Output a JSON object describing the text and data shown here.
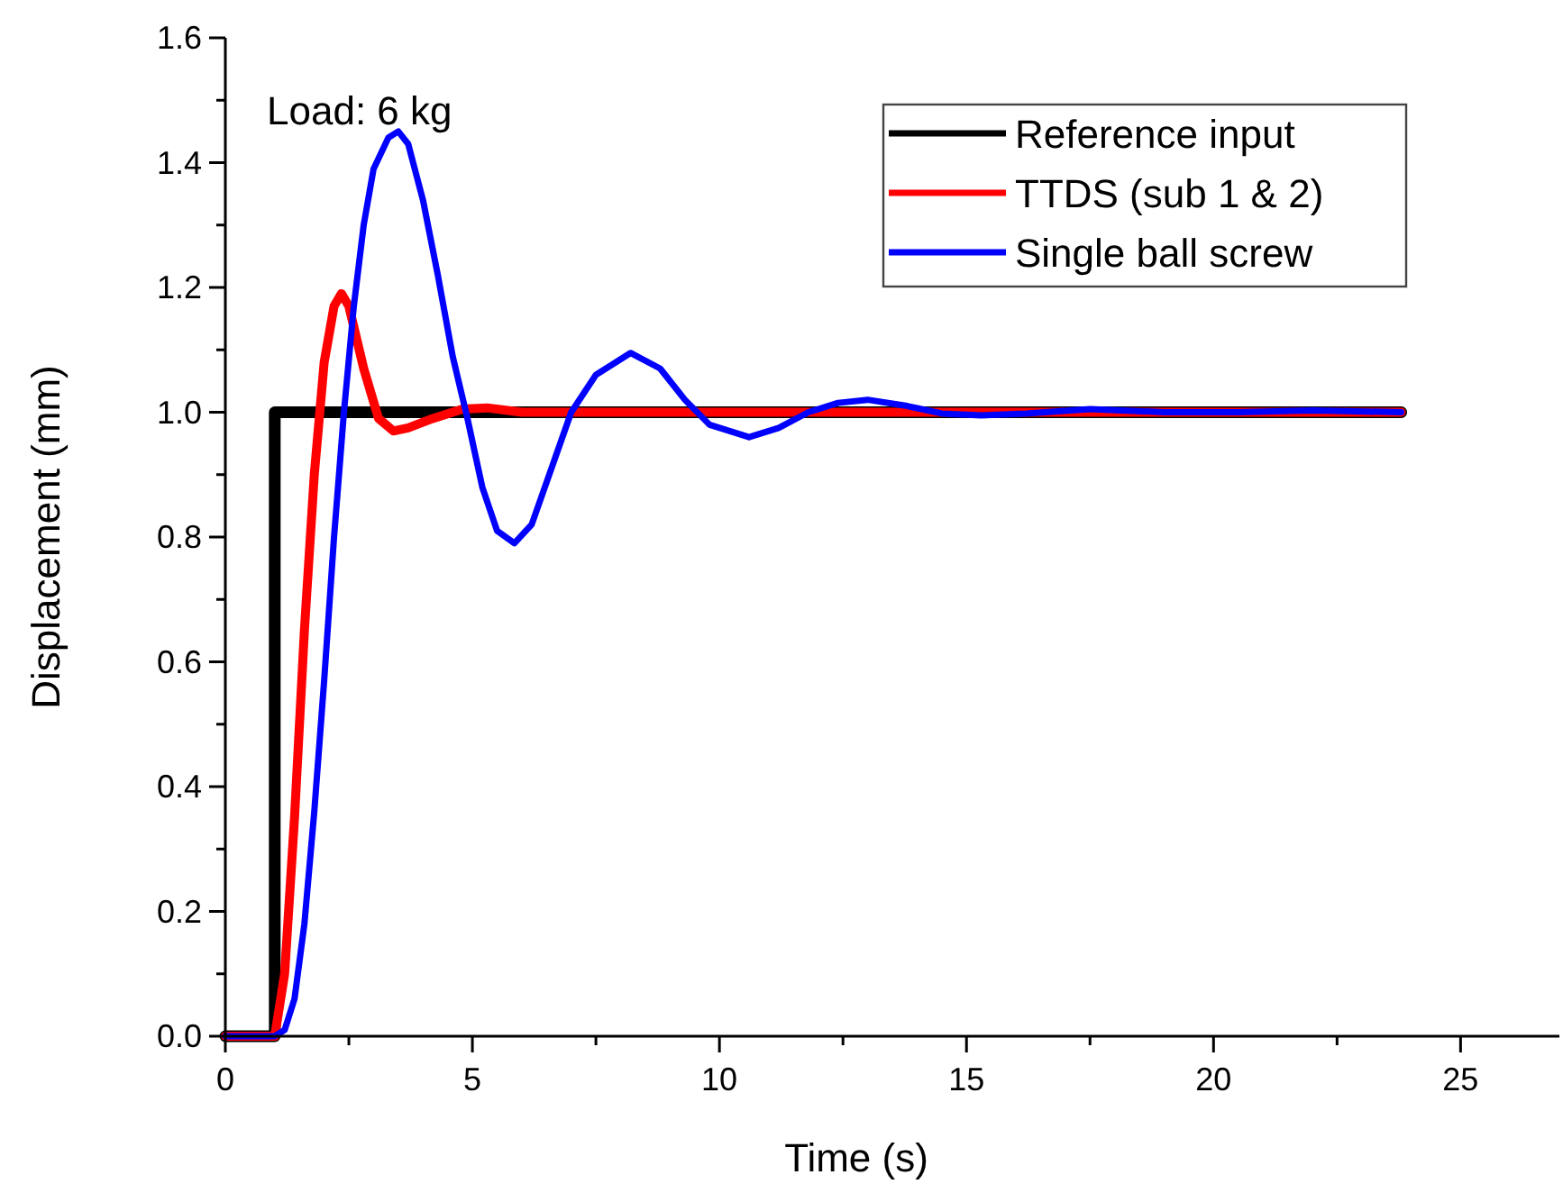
{
  "chart_data": {
    "type": "line",
    "xlabel": "Time (s)",
    "ylabel": "Displacement (mm)",
    "annotations": [
      "Load: 6 kg"
    ],
    "xlim": [
      0,
      27
    ],
    "ylim": [
      0,
      1.6
    ],
    "xticks": [
      0,
      {
        "value": 2.5,
        "label": null
      },
      5,
      {
        "value": 7.5,
        "label": null
      },
      10,
      {
        "value": 12.5,
        "label": null
      },
      15,
      {
        "value": 17.5,
        "label": null
      },
      20,
      {
        "value": 22.5,
        "label": null
      },
      25
    ],
    "yticks": [
      {
        "value": 0,
        "label": "0.0"
      },
      {
        "value": 0.1,
        "label": null
      },
      {
        "value": 0.2,
        "label": "0.2"
      },
      {
        "value": 0.3,
        "label": null
      },
      {
        "value": 0.4,
        "label": "0.4"
      },
      {
        "value": 0.5,
        "label": null
      },
      {
        "value": 0.6,
        "label": "0.6"
      },
      {
        "value": 0.7,
        "label": null
      },
      {
        "value": 0.8,
        "label": "0.8"
      },
      {
        "value": 0.9,
        "label": null
      },
      {
        "value": 1.0,
        "label": "1.0"
      },
      {
        "value": 1.1,
        "label": null
      },
      {
        "value": 1.2,
        "label": "1.2"
      },
      {
        "value": 1.3,
        "label": null
      },
      {
        "value": 1.4,
        "label": "1.4"
      },
      {
        "value": 1.5,
        "label": null
      },
      {
        "value": 1.6,
        "label": "1.6"
      }
    ],
    "grid": false,
    "legend": "top right",
    "line_style": "solid",
    "series": [
      {
        "name": "Reference input",
        "color": "#000000",
        "x": [
          0,
          1,
          1,
          23.8
        ],
        "values": [
          0,
          0,
          1,
          1
        ]
      },
      {
        "name": "TTDS (sub 1 & 2)",
        "color": "#ff0000",
        "x": [
          0,
          1,
          1.2,
          1.4,
          1.6,
          1.8,
          2.0,
          2.2,
          2.35,
          2.5,
          2.8,
          3.1,
          3.4,
          3.7,
          4.2,
          4.8,
          5.3,
          6,
          8,
          23.8
        ],
        "values": [
          0,
          0,
          0.1,
          0.35,
          0.65,
          0.9,
          1.08,
          1.17,
          1.19,
          1.17,
          1.07,
          0.99,
          0.97,
          0.975,
          0.99,
          1.005,
          1.007,
          1.0,
          1.0,
          1.0
        ]
      },
      {
        "name": "Single ball screw",
        "color": "#0000ff",
        "x": [
          0,
          1,
          1.2,
          1.4,
          1.6,
          1.8,
          2.0,
          2.2,
          2.4,
          2.6,
          2.8,
          3.0,
          3.3,
          3.5,
          3.7,
          4.0,
          4.3,
          4.6,
          4.9,
          5.2,
          5.5,
          5.85,
          6.2,
          6.6,
          7.0,
          7.5,
          8.2,
          8.8,
          9.3,
          9.8,
          10.6,
          11.2,
          11.8,
          12.4,
          13,
          13.8,
          14.5,
          15.3,
          16.2,
          17.5,
          19,
          20.5,
          22,
          23.8
        ],
        "values": [
          0,
          0,
          0.01,
          0.06,
          0.18,
          0.36,
          0.57,
          0.8,
          1.0,
          1.17,
          1.3,
          1.39,
          1.44,
          1.45,
          1.43,
          1.34,
          1.22,
          1.09,
          0.99,
          0.88,
          0.81,
          0.79,
          0.82,
          0.91,
          1.0,
          1.06,
          1.095,
          1.07,
          1.02,
          0.98,
          0.96,
          0.975,
          1.0,
          1.015,
          1.02,
          1.01,
          0.998,
          0.995,
          0.998,
          1.005,
          1.0,
          1.0,
          1.003,
          1.0
        ]
      }
    ]
  }
}
